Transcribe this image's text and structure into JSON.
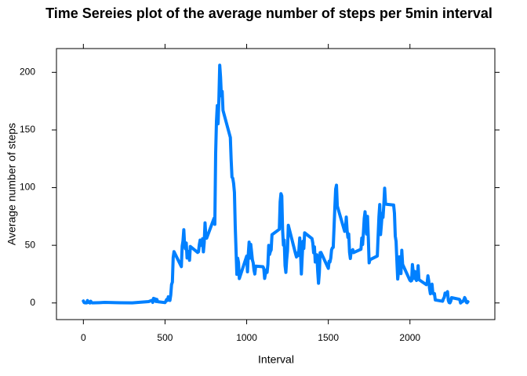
{
  "chart_data": {
    "type": "line",
    "title": "Time Sereies plot of the average number of steps per 5min interval",
    "x_label": "Interval",
    "y_label": "Average number of steps",
    "x": [
      0,
      5,
      10,
      15,
      20,
      25,
      30,
      35,
      40,
      45,
      50,
      55,
      100,
      130,
      200,
      230,
      300,
      330,
      400,
      420,
      425,
      430,
      435,
      440,
      445,
      450,
      455,
      500,
      505,
      510,
      515,
      520,
      525,
      530,
      535,
      540,
      545,
      550,
      555,
      600,
      605,
      610,
      615,
      620,
      625,
      630,
      635,
      640,
      645,
      650,
      655,
      700,
      705,
      710,
      715,
      720,
      725,
      730,
      735,
      740,
      745,
      750,
      755,
      800,
      805,
      810,
      815,
      820,
      825,
      830,
      835,
      840,
      845,
      850,
      855,
      900,
      905,
      910,
      915,
      920,
      925,
      930,
      935,
      940,
      945,
      950,
      955,
      1000,
      1005,
      1010,
      1015,
      1020,
      1025,
      1030,
      1035,
      1040,
      1045,
      1050,
      1055,
      1100,
      1105,
      1110,
      1115,
      1120,
      1125,
      1130,
      1135,
      1140,
      1145,
      1150,
      1155,
      1200,
      1205,
      1210,
      1215,
      1220,
      1225,
      1230,
      1235,
      1240,
      1245,
      1250,
      1255,
      1300,
      1305,
      1310,
      1315,
      1320,
      1325,
      1330,
      1335,
      1340,
      1345,
      1350,
      1355,
      1400,
      1405,
      1410,
      1415,
      1420,
      1425,
      1430,
      1435,
      1440,
      1445,
      1450,
      1455,
      1500,
      1505,
      1510,
      1515,
      1520,
      1525,
      1530,
      1535,
      1540,
      1545,
      1550,
      1555,
      1600,
      1605,
      1610,
      1615,
      1620,
      1625,
      1630,
      1635,
      1640,
      1645,
      1650,
      1655,
      1700,
      1705,
      1710,
      1715,
      1720,
      1725,
      1730,
      1735,
      1740,
      1745,
      1750,
      1755,
      1800,
      1805,
      1810,
      1815,
      1820,
      1825,
      1830,
      1835,
      1840,
      1845,
      1850,
      1855,
      1900,
      1905,
      1910,
      1915,
      1920,
      1925,
      1930,
      1935,
      1940,
      1945,
      1950,
      1955,
      2000,
      2005,
      2010,
      2015,
      2020,
      2025,
      2030,
      2035,
      2040,
      2045,
      2050,
      2055,
      2100,
      2105,
      2110,
      2115,
      2120,
      2125,
      2130,
      2135,
      2140,
      2145,
      2150,
      2155,
      2200,
      2205,
      2210,
      2215,
      2220,
      2225,
      2230,
      2235,
      2240,
      2245,
      2250,
      2255,
      2300,
      2305,
      2310,
      2315,
      2320,
      2325,
      2330,
      2335,
      2340,
      2345,
      2350,
      2355
    ],
    "series": [
      {
        "name": "steps",
        "color": "#0080ff",
        "values": [
          1.7,
          0.3,
          0.1,
          0.2,
          0.1,
          2.1,
          0.5,
          0.9,
          0,
          1.5,
          0.3,
          0.1,
          0.3,
          0.5,
          0.3,
          0.2,
          0.1,
          0.4,
          1.2,
          2.3,
          0.5,
          4,
          2.5,
          3.5,
          1.2,
          3.1,
          1.1,
          0.3,
          1.6,
          3,
          2.2,
          5.3,
          3,
          2.2,
          6.9,
          16,
          18,
          39.5,
          44.5,
          31.5,
          49.3,
          53.8,
          63.5,
          50,
          47,
          52,
          39,
          44,
          44.7,
          37,
          49,
          43.8,
          44.4,
          50.5,
          54.5,
          49.9,
          50.9,
          55.7,
          44.3,
          52.3,
          69.5,
          57.8,
          56.2,
          73.4,
          68.2,
          129.4,
          157.5,
          171.2,
          155.4,
          177.3,
          206.2,
          195.9,
          179.6,
          183.4,
          167,
          143.5,
          124,
          109.1,
          108.1,
          103.7,
          95.9,
          66.2,
          45.2,
          24.8,
          38.8,
          35,
          21.1,
          40.6,
          27,
          42.4,
          52.7,
          38.9,
          50.8,
          44.3,
          37.4,
          34.7,
          28.3,
          25.1,
          31.9,
          31.4,
          29.7,
          21.3,
          25.5,
          28.4,
          26.5,
          33.4,
          49.9,
          42,
          44.6,
          46,
          59.2,
          63.9,
          87.7,
          94.8,
          92.8,
          63.4,
          50.2,
          54.5,
          32.4,
          26.5,
          37.7,
          45.1,
          67.3,
          42.3,
          39.9,
          43.3,
          41,
          46.2,
          56.4,
          42.8,
          25.1,
          40,
          53.5,
          47.3,
          60.8,
          55.8,
          52,
          43.6,
          48.7,
          35.5,
          37.5,
          41.8,
          27.5,
          17.1,
          26.1,
          43.6,
          43.8,
          30,
          36.1,
          35.5,
          38.8,
          46,
          47.8,
          48.1,
          65.3,
          82.9,
          98.7,
          102.1,
          84,
          62.1,
          64.1,
          74.5,
          63.2,
          56.9,
          59.8,
          43.9,
          38.6,
          44.7,
          45.5,
          46.2,
          43.7,
          46.6,
          56.3,
          50.7,
          61.2,
          73.4,
          79.1,
          68.9,
          59.7,
          75.1,
          56.5,
          34.8,
          37.5,
          40.7,
          58,
          74.7,
          85.3,
          59.3,
          67.8,
          77.7,
          74.2,
          85.3,
          99.5,
          86.6,
          85.6,
          84.9,
          77.8,
          58,
          53.4,
          36.3,
          20.7,
          27.4,
          40,
          30.2,
          25.5,
          45.7,
          33.5,
          19.6,
          19,
          19.3,
          33.3,
          26.8,
          21.2,
          27.3,
          21.3,
          19.5,
          21.3,
          32.3,
          20.2,
          15.9,
          17.2,
          23.5,
          19.2,
          12.5,
          8,
          14.7,
          16.3,
          8.7,
          7.8,
          8.1,
          2.6,
          1.5,
          3.7,
          4.8,
          8.5,
          7.1,
          8.7,
          9.8,
          2.2,
          0.3,
          0.1,
          1.6,
          4.6,
          3.3,
          2.8,
          0,
          0.8,
          1,
          1.6,
          2.6,
          4.7,
          3.3,
          0.6,
          0.2,
          1.1
        ]
      }
    ],
    "xlim": [
      -164.85,
      2519.85
    ],
    "ylim": [
      -14.43,
      220.6
    ],
    "xticks": [
      0,
      500,
      1000,
      1500,
      2000
    ],
    "yticks": [
      0,
      50,
      100,
      150,
      200
    ]
  }
}
